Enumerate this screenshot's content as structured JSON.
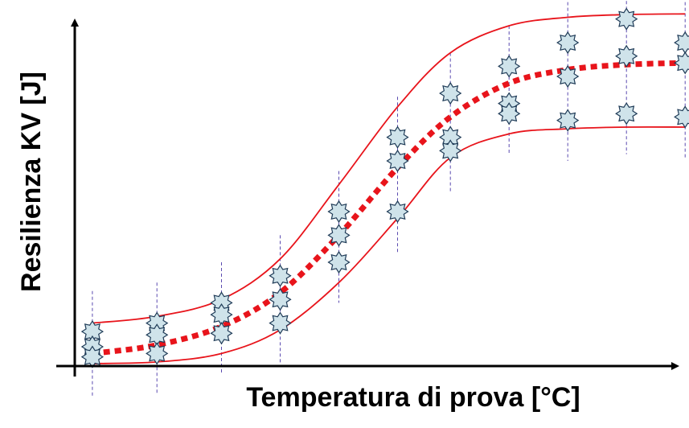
{
  "chart_data": {
    "type": "scatter",
    "title": "",
    "xlabel": "Temperatura di prova [°C]",
    "ylabel": "Resilienza KV [J]",
    "xlim": [
      0,
      100
    ],
    "ylim": [
      0,
      100
    ],
    "grid": false,
    "legend": "none",
    "x_positions": [
      3,
      14,
      25,
      35,
      45,
      55,
      64,
      74,
      84,
      94,
      104
    ],
    "points": [
      {
        "x": 3,
        "y": 9.5
      },
      {
        "x": 3,
        "y": 5
      },
      {
        "x": 3,
        "y": 2
      },
      {
        "x": 14,
        "y": 12
      },
      {
        "x": 14,
        "y": 8.5
      },
      {
        "x": 14,
        "y": 3
      },
      {
        "x": 25,
        "y": 18
      },
      {
        "x": 25,
        "y": 14.5
      },
      {
        "x": 25,
        "y": 9
      },
      {
        "x": 35,
        "y": 26
      },
      {
        "x": 35,
        "y": 19
      },
      {
        "x": 35,
        "y": 12
      },
      {
        "x": 45,
        "y": 45
      },
      {
        "x": 45,
        "y": 38
      },
      {
        "x": 45,
        "y": 30
      },
      {
        "x": 55,
        "y": 67
      },
      {
        "x": 55,
        "y": 60
      },
      {
        "x": 55,
        "y": 45
      },
      {
        "x": 64,
        "y": 80
      },
      {
        "x": 64,
        "y": 67
      },
      {
        "x": 64,
        "y": 63
      },
      {
        "x": 74,
        "y": 88
      },
      {
        "x": 74,
        "y": 77
      },
      {
        "x": 74,
        "y": 74
      },
      {
        "x": 84,
        "y": 95
      },
      {
        "x": 84,
        "y": 85
      },
      {
        "x": 84,
        "y": 72
      },
      {
        "x": 94,
        "y": 102
      },
      {
        "x": 94,
        "y": 91
      },
      {
        "x": 94,
        "y": 74
      },
      {
        "x": 104,
        "y": 95
      },
      {
        "x": 104,
        "y": 89
      },
      {
        "x": 104,
        "y": 73
      }
    ],
    "mean_curve": [
      {
        "x": 3,
        "y": 3
      },
      {
        "x": 14,
        "y": 5.5
      },
      {
        "x": 25,
        "y": 11
      },
      {
        "x": 35,
        "y": 21
      },
      {
        "x": 45,
        "y": 38
      },
      {
        "x": 55,
        "y": 58
      },
      {
        "x": 64,
        "y": 73
      },
      {
        "x": 74,
        "y": 83
      },
      {
        "x": 84,
        "y": 87
      },
      {
        "x": 94,
        "y": 88.5
      },
      {
        "x": 104,
        "y": 89
      }
    ],
    "upper_band": [
      {
        "x": 3,
        "y": 12
      },
      {
        "x": 14,
        "y": 14
      },
      {
        "x": 25,
        "y": 19
      },
      {
        "x": 35,
        "y": 31
      },
      {
        "x": 45,
        "y": 53
      },
      {
        "x": 55,
        "y": 76
      },
      {
        "x": 64,
        "y": 92
      },
      {
        "x": 74,
        "y": 100
      },
      {
        "x": 84,
        "y": 102.5
      },
      {
        "x": 94,
        "y": 103.3
      },
      {
        "x": 104,
        "y": 103.5
      }
    ],
    "lower_band": [
      {
        "x": 3,
        "y": 0
      },
      {
        "x": 14,
        "y": 0.5
      },
      {
        "x": 25,
        "y": 3
      },
      {
        "x": 35,
        "y": 10
      },
      {
        "x": 45,
        "y": 24
      },
      {
        "x": 55,
        "y": 43
      },
      {
        "x": 64,
        "y": 61
      },
      {
        "x": 74,
        "y": 68
      },
      {
        "x": 84,
        "y": 69.5
      },
      {
        "x": 94,
        "y": 70
      },
      {
        "x": 104,
        "y": 70
      }
    ],
    "colors": {
      "marker_fill": "#cfe3ea",
      "marker_stroke": "#1f3b57",
      "mean_curve": "#e8141b",
      "band": "#e8141b",
      "guide_line": "#5b4bb0",
      "axis": "#000000"
    }
  }
}
